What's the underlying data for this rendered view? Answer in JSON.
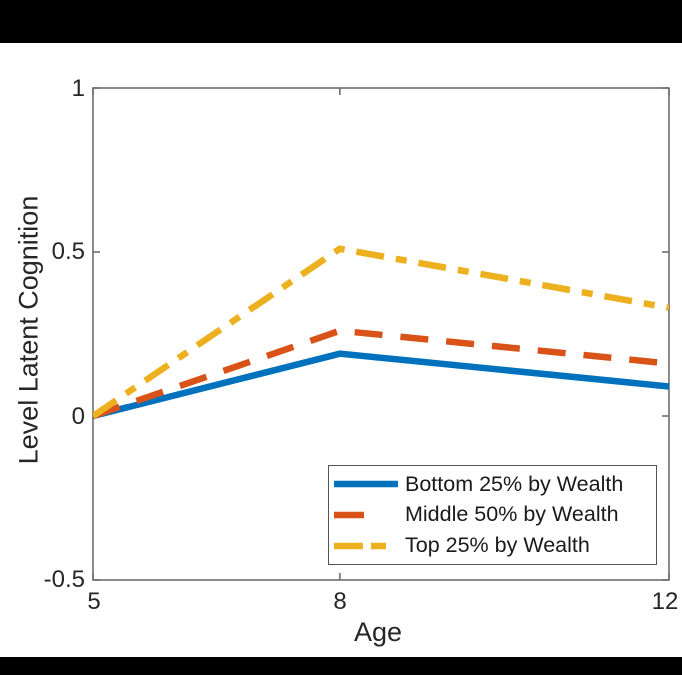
{
  "figure": {
    "background": "#ffffff",
    "top_bar_color": "#000000",
    "bottom_bar_color": "#000000",
    "axis_color": "#6e6e6e",
    "text_color": "#262626"
  },
  "chart_data": {
    "type": "line",
    "title": "",
    "xlabel": "Age",
    "ylabel": "Level Latent Cognition",
    "x": [
      5,
      8,
      12
    ],
    "xlim": [
      5,
      12
    ],
    "ylim": [
      -0.5,
      1
    ],
    "xticks": [
      5,
      8,
      12
    ],
    "xtick_labels": [
      "5",
      "8",
      "12"
    ],
    "yticks": [
      1,
      0.5,
      0,
      -0.5
    ],
    "ytick_labels": [
      "1",
      "0.5",
      "0",
      "-0.5"
    ],
    "grid": false,
    "legend_position": "lower-right",
    "series": [
      {
        "name": "Bottom 25% by Wealth",
        "color": "#0072BD",
        "style": "solid",
        "values": [
          0,
          0.19,
          0.09
        ]
      },
      {
        "name": "Middle 50% by Wealth",
        "color": "#D95319",
        "style": "dashed",
        "values": [
          0,
          0.26,
          0.16
        ]
      },
      {
        "name": "Top 25% by Wealth",
        "color": "#EDB120",
        "style": "dashdot",
        "values": [
          0,
          0.51,
          0.33
        ]
      }
    ]
  }
}
